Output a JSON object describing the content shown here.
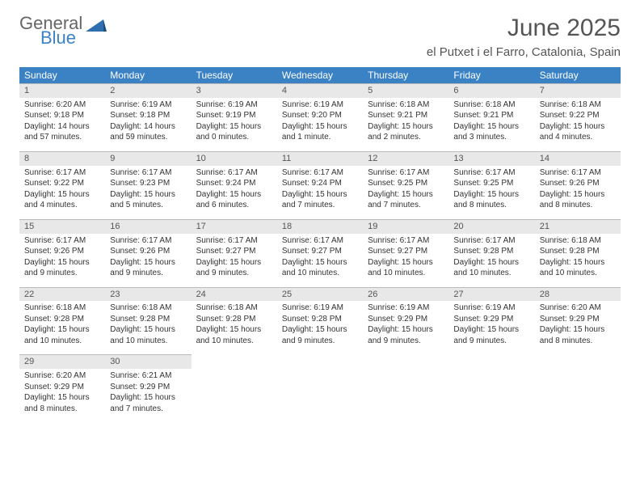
{
  "logo": {
    "word1": "General",
    "word2": "Blue",
    "mark_color": "#2f6fb0"
  },
  "title": {
    "month": "June 2025",
    "location": "el Putxet i el Farro, Catalonia, Spain"
  },
  "colors": {
    "header_bg": "#3b82c4",
    "header_text": "#ffffff",
    "daynum_bg": "#e8e8e8",
    "daynum_border": "#bbbbbb",
    "body_text": "#333333"
  },
  "weekdays": [
    "Sunday",
    "Monday",
    "Tuesday",
    "Wednesday",
    "Thursday",
    "Friday",
    "Saturday"
  ],
  "weeks": [
    [
      {
        "n": "1",
        "sr": "Sunrise: 6:20 AM",
        "ss": "Sunset: 9:18 PM",
        "d1": "Daylight: 14 hours",
        "d2": "and 57 minutes."
      },
      {
        "n": "2",
        "sr": "Sunrise: 6:19 AM",
        "ss": "Sunset: 9:18 PM",
        "d1": "Daylight: 14 hours",
        "d2": "and 59 minutes."
      },
      {
        "n": "3",
        "sr": "Sunrise: 6:19 AM",
        "ss": "Sunset: 9:19 PM",
        "d1": "Daylight: 15 hours",
        "d2": "and 0 minutes."
      },
      {
        "n": "4",
        "sr": "Sunrise: 6:19 AM",
        "ss": "Sunset: 9:20 PM",
        "d1": "Daylight: 15 hours",
        "d2": "and 1 minute."
      },
      {
        "n": "5",
        "sr": "Sunrise: 6:18 AM",
        "ss": "Sunset: 9:21 PM",
        "d1": "Daylight: 15 hours",
        "d2": "and 2 minutes."
      },
      {
        "n": "6",
        "sr": "Sunrise: 6:18 AM",
        "ss": "Sunset: 9:21 PM",
        "d1": "Daylight: 15 hours",
        "d2": "and 3 minutes."
      },
      {
        "n": "7",
        "sr": "Sunrise: 6:18 AM",
        "ss": "Sunset: 9:22 PM",
        "d1": "Daylight: 15 hours",
        "d2": "and 4 minutes."
      }
    ],
    [
      {
        "n": "8",
        "sr": "Sunrise: 6:17 AM",
        "ss": "Sunset: 9:22 PM",
        "d1": "Daylight: 15 hours",
        "d2": "and 4 minutes."
      },
      {
        "n": "9",
        "sr": "Sunrise: 6:17 AM",
        "ss": "Sunset: 9:23 PM",
        "d1": "Daylight: 15 hours",
        "d2": "and 5 minutes."
      },
      {
        "n": "10",
        "sr": "Sunrise: 6:17 AM",
        "ss": "Sunset: 9:24 PM",
        "d1": "Daylight: 15 hours",
        "d2": "and 6 minutes."
      },
      {
        "n": "11",
        "sr": "Sunrise: 6:17 AM",
        "ss": "Sunset: 9:24 PM",
        "d1": "Daylight: 15 hours",
        "d2": "and 7 minutes."
      },
      {
        "n": "12",
        "sr": "Sunrise: 6:17 AM",
        "ss": "Sunset: 9:25 PM",
        "d1": "Daylight: 15 hours",
        "d2": "and 7 minutes."
      },
      {
        "n": "13",
        "sr": "Sunrise: 6:17 AM",
        "ss": "Sunset: 9:25 PM",
        "d1": "Daylight: 15 hours",
        "d2": "and 8 minutes."
      },
      {
        "n": "14",
        "sr": "Sunrise: 6:17 AM",
        "ss": "Sunset: 9:26 PM",
        "d1": "Daylight: 15 hours",
        "d2": "and 8 minutes."
      }
    ],
    [
      {
        "n": "15",
        "sr": "Sunrise: 6:17 AM",
        "ss": "Sunset: 9:26 PM",
        "d1": "Daylight: 15 hours",
        "d2": "and 9 minutes."
      },
      {
        "n": "16",
        "sr": "Sunrise: 6:17 AM",
        "ss": "Sunset: 9:26 PM",
        "d1": "Daylight: 15 hours",
        "d2": "and 9 minutes."
      },
      {
        "n": "17",
        "sr": "Sunrise: 6:17 AM",
        "ss": "Sunset: 9:27 PM",
        "d1": "Daylight: 15 hours",
        "d2": "and 9 minutes."
      },
      {
        "n": "18",
        "sr": "Sunrise: 6:17 AM",
        "ss": "Sunset: 9:27 PM",
        "d1": "Daylight: 15 hours",
        "d2": "and 10 minutes."
      },
      {
        "n": "19",
        "sr": "Sunrise: 6:17 AM",
        "ss": "Sunset: 9:27 PM",
        "d1": "Daylight: 15 hours",
        "d2": "and 10 minutes."
      },
      {
        "n": "20",
        "sr": "Sunrise: 6:17 AM",
        "ss": "Sunset: 9:28 PM",
        "d1": "Daylight: 15 hours",
        "d2": "and 10 minutes."
      },
      {
        "n": "21",
        "sr": "Sunrise: 6:18 AM",
        "ss": "Sunset: 9:28 PM",
        "d1": "Daylight: 15 hours",
        "d2": "and 10 minutes."
      }
    ],
    [
      {
        "n": "22",
        "sr": "Sunrise: 6:18 AM",
        "ss": "Sunset: 9:28 PM",
        "d1": "Daylight: 15 hours",
        "d2": "and 10 minutes."
      },
      {
        "n": "23",
        "sr": "Sunrise: 6:18 AM",
        "ss": "Sunset: 9:28 PM",
        "d1": "Daylight: 15 hours",
        "d2": "and 10 minutes."
      },
      {
        "n": "24",
        "sr": "Sunrise: 6:18 AM",
        "ss": "Sunset: 9:28 PM",
        "d1": "Daylight: 15 hours",
        "d2": "and 10 minutes."
      },
      {
        "n": "25",
        "sr": "Sunrise: 6:19 AM",
        "ss": "Sunset: 9:28 PM",
        "d1": "Daylight: 15 hours",
        "d2": "and 9 minutes."
      },
      {
        "n": "26",
        "sr": "Sunrise: 6:19 AM",
        "ss": "Sunset: 9:29 PM",
        "d1": "Daylight: 15 hours",
        "d2": "and 9 minutes."
      },
      {
        "n": "27",
        "sr": "Sunrise: 6:19 AM",
        "ss": "Sunset: 9:29 PM",
        "d1": "Daylight: 15 hours",
        "d2": "and 9 minutes."
      },
      {
        "n": "28",
        "sr": "Sunrise: 6:20 AM",
        "ss": "Sunset: 9:29 PM",
        "d1": "Daylight: 15 hours",
        "d2": "and 8 minutes."
      }
    ],
    [
      {
        "n": "29",
        "sr": "Sunrise: 6:20 AM",
        "ss": "Sunset: 9:29 PM",
        "d1": "Daylight: 15 hours",
        "d2": "and 8 minutes."
      },
      {
        "n": "30",
        "sr": "Sunrise: 6:21 AM",
        "ss": "Sunset: 9:29 PM",
        "d1": "Daylight: 15 hours",
        "d2": "and 7 minutes."
      },
      null,
      null,
      null,
      null,
      null
    ]
  ]
}
